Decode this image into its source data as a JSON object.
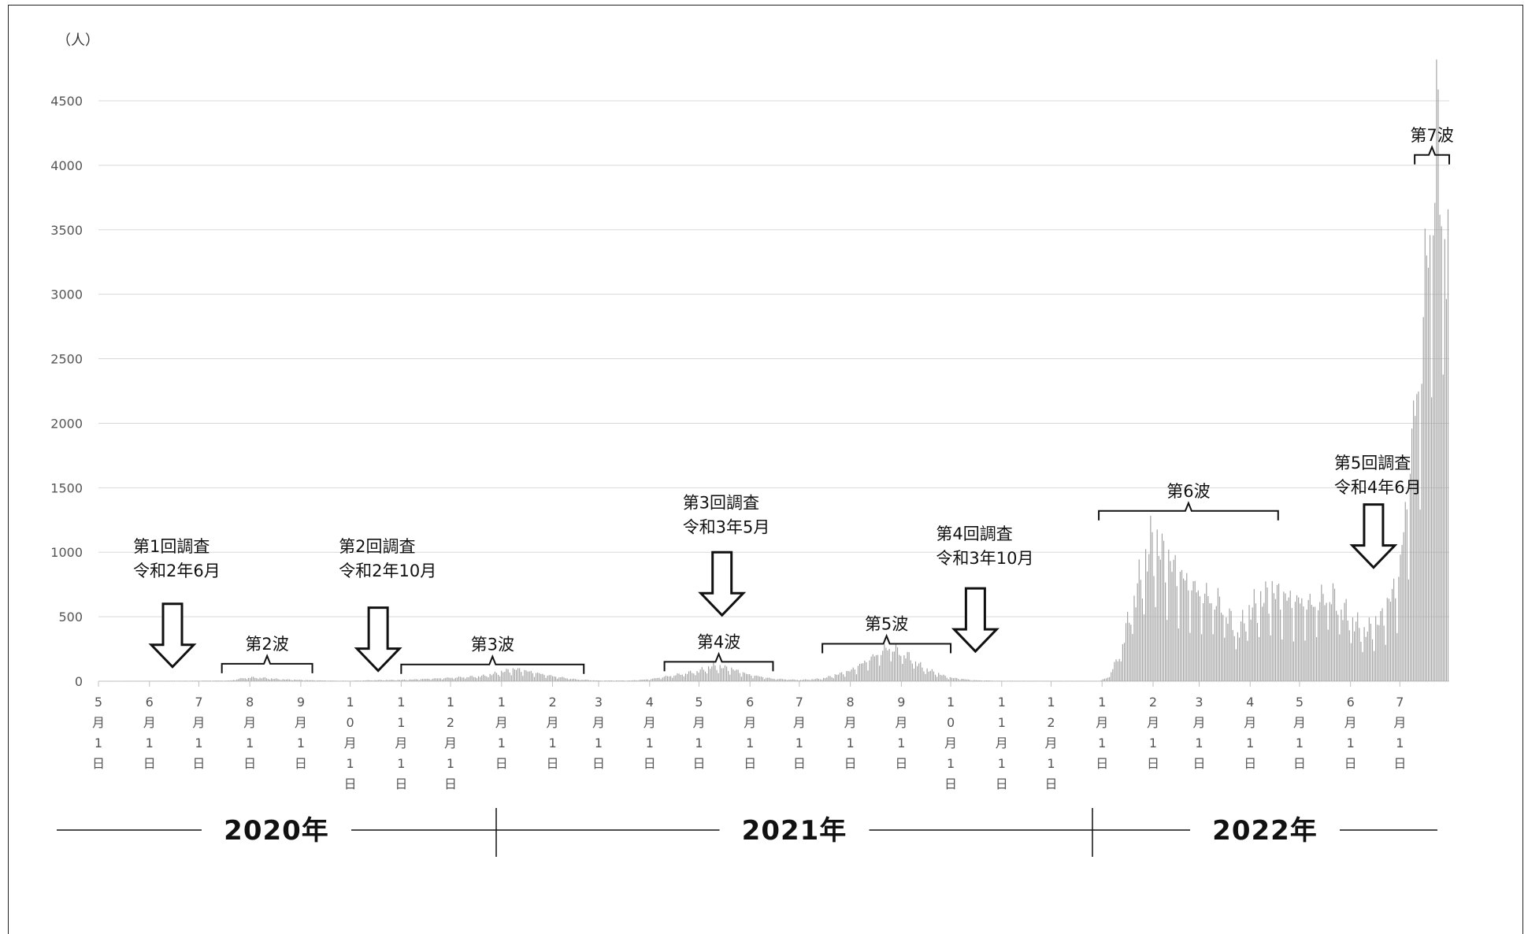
{
  "chart_data": {
    "type": "bar",
    "ylabel": "（人）",
    "ylim": [
      0,
      4500
    ],
    "yticks": [
      0,
      500,
      1000,
      1500,
      2000,
      2500,
      3000,
      3500,
      4000,
      4500
    ],
    "grid": true,
    "bar_color": "#a0a0a0",
    "x_start": "2020-05-01",
    "x_end": "2022-07-31",
    "month_ticks": [
      {
        "label": "5月1日",
        "date": "2020-05-01"
      },
      {
        "label": "6月1日",
        "date": "2020-06-01"
      },
      {
        "label": "7月1日",
        "date": "2020-07-01"
      },
      {
        "label": "8月1日",
        "date": "2020-08-01"
      },
      {
        "label": "9月1日",
        "date": "2020-09-01"
      },
      {
        "label": "10月1日",
        "date": "2020-10-01"
      },
      {
        "label": "11月1日",
        "date": "2020-11-01"
      },
      {
        "label": "12月1日",
        "date": "2020-12-01"
      },
      {
        "label": "1月1日",
        "date": "2021-01-01"
      },
      {
        "label": "2月1日",
        "date": "2021-02-01"
      },
      {
        "label": "3月1日",
        "date": "2021-03-01"
      },
      {
        "label": "4月1日",
        "date": "2021-04-01"
      },
      {
        "label": "5月1日",
        "date": "2021-05-01"
      },
      {
        "label": "6月1日",
        "date": "2021-06-01"
      },
      {
        "label": "7月1日",
        "date": "2021-07-01"
      },
      {
        "label": "8月1日",
        "date": "2021-08-01"
      },
      {
        "label": "9月1日",
        "date": "2021-09-01"
      },
      {
        "label": "10月1日",
        "date": "2021-10-01"
      },
      {
        "label": "11月1日",
        "date": "2021-11-01"
      },
      {
        "label": "12月1日",
        "date": "2021-12-01"
      },
      {
        "label": "1月1日",
        "date": "2022-01-01"
      },
      {
        "label": "2月1日",
        "date": "2022-02-01"
      },
      {
        "label": "3月1日",
        "date": "2022-03-01"
      },
      {
        "label": "4月1日",
        "date": "2022-04-01"
      },
      {
        "label": "5月1日",
        "date": "2022-05-01"
      },
      {
        "label": "6月1日",
        "date": "2022-06-01"
      },
      {
        "label": "7月1日",
        "date": "2022-07-01"
      }
    ],
    "years": [
      {
        "label": "2020年"
      },
      {
        "label": "2021年"
      },
      {
        "label": "2022年"
      }
    ],
    "series": [
      {
        "description": "daily new cases (approximate, read from chart)",
        "points": [
          [
            "2020-05-01",
            0
          ],
          [
            "2020-07-20",
            5
          ],
          [
            "2020-07-28",
            25
          ],
          [
            "2020-08-03",
            30
          ],
          [
            "2020-08-10",
            25
          ],
          [
            "2020-08-20",
            15
          ],
          [
            "2020-09-05",
            8
          ],
          [
            "2020-09-20",
            4
          ],
          [
            "2020-10-01",
            3
          ],
          [
            "2020-10-15",
            8
          ],
          [
            "2020-11-01",
            10
          ],
          [
            "2020-11-20",
            20
          ],
          [
            "2020-12-05",
            30
          ],
          [
            "2020-12-20",
            40
          ],
          [
            "2020-12-28",
            60
          ],
          [
            "2021-01-05",
            85
          ],
          [
            "2021-01-10",
            95
          ],
          [
            "2021-01-20",
            70
          ],
          [
            "2021-02-01",
            40
          ],
          [
            "2021-02-15",
            15
          ],
          [
            "2021-03-01",
            5
          ],
          [
            "2021-03-20",
            5
          ],
          [
            "2021-04-01",
            15
          ],
          [
            "2021-04-15",
            45
          ],
          [
            "2021-05-01",
            80
          ],
          [
            "2021-05-10",
            120
          ],
          [
            "2021-05-20",
            100
          ],
          [
            "2021-06-01",
            50
          ],
          [
            "2021-06-15",
            20
          ],
          [
            "2021-07-01",
            10
          ],
          [
            "2021-07-15",
            20
          ],
          [
            "2021-08-01",
            80
          ],
          [
            "2021-08-10",
            150
          ],
          [
            "2021-08-25",
            270
          ],
          [
            "2021-09-05",
            200
          ],
          [
            "2021-09-15",
            100
          ],
          [
            "2021-09-30",
            30
          ],
          [
            "2021-10-15",
            8
          ],
          [
            "2021-11-01",
            3
          ],
          [
            "2021-12-31",
            2
          ],
          [
            "2022-01-05",
            30
          ],
          [
            "2022-01-12",
            200
          ],
          [
            "2022-01-20",
            600
          ],
          [
            "2022-02-01",
            1100
          ],
          [
            "2022-02-10",
            950
          ],
          [
            "2022-02-20",
            800
          ],
          [
            "2022-03-01",
            700
          ],
          [
            "2022-03-15",
            600
          ],
          [
            "2022-03-25",
            380
          ],
          [
            "2022-04-01",
            550
          ],
          [
            "2022-04-15",
            700
          ],
          [
            "2022-04-25",
            640
          ],
          [
            "2022-05-10",
            600
          ],
          [
            "2022-05-20",
            680
          ],
          [
            "2022-06-01",
            500
          ],
          [
            "2022-06-10",
            380
          ],
          [
            "2022-06-20",
            480
          ],
          [
            "2022-07-01",
            800
          ],
          [
            "2022-07-05",
            1300
          ],
          [
            "2022-07-10",
            2000
          ],
          [
            "2022-07-15",
            2600
          ],
          [
            "2022-07-20",
            3700
          ],
          [
            "2022-07-25",
            4200
          ],
          [
            "2022-07-28",
            3900
          ],
          [
            "2022-07-31",
            3200
          ]
        ]
      }
    ],
    "waves": [
      {
        "label": "第2波",
        "start": "2020-07-15",
        "end": "2020-09-08",
        "label_y": 245
      },
      {
        "label": "第3波",
        "start": "2020-11-01",
        "end": "2021-02-20",
        "label_y": 240
      },
      {
        "label": "第4波",
        "start": "2021-04-10",
        "end": "2021-06-15",
        "label_y": 260
      },
      {
        "label": "第5波",
        "start": "2021-07-15",
        "end": "2021-10-01",
        "label_y": 400
      },
      {
        "label": "第6波",
        "start": "2021-12-30",
        "end": "2022-04-18",
        "label_y": 1430
      },
      {
        "label": "第7波",
        "start": "2022-07-10",
        "end": "2022-07-31",
        "label_y": 4190
      }
    ],
    "surveys": [
      {
        "line1": "第1回調査",
        "line2": "令和2年6月",
        "date": "2020-06-15",
        "top_value": 600,
        "label_y": 1000
      },
      {
        "line1": "第2回調査",
        "line2": "令和2年10月",
        "date": "2020-10-18",
        "top_value": 570,
        "label_y": 1000
      },
      {
        "line1": "第3回調査",
        "line2": "令和3年5月",
        "date": "2021-05-15",
        "top_value": 1000,
        "label_y": 1340
      },
      {
        "line1": "第4回調査",
        "line2": "令和3年10月",
        "date": "2021-10-16",
        "top_value": 720,
        "label_y": 1100
      },
      {
        "line1": "第5回調査",
        "line2": "令和4年6月",
        "date": "2022-06-15",
        "top_value": 1370,
        "label_y": 1650
      }
    ]
  }
}
